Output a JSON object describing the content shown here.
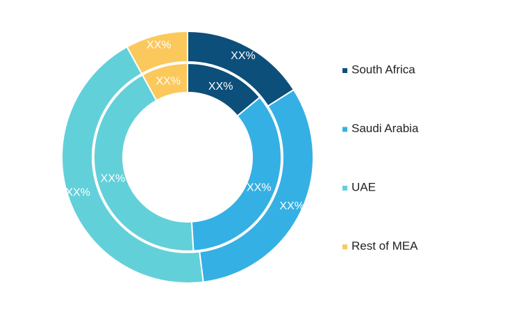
{
  "chart_data": {
    "type": "pie",
    "subtype": "double-donut",
    "categories": [
      "South Africa",
      "Saudi Arabia",
      "UAE",
      "Rest of MEA"
    ],
    "colors": [
      "#0c4f7a",
      "#35b0e4",
      "#62d0d9",
      "#fbc85c"
    ],
    "series": [
      {
        "ring": "outer",
        "values": [
          16,
          32,
          44,
          8
        ],
        "labels": [
          "XX%",
          "XX%",
          "XX%",
          "XX%"
        ]
      },
      {
        "ring": "inner",
        "values": [
          14,
          35,
          43,
          8
        ],
        "labels": [
          "XX%",
          "XX%",
          "XX%",
          "XX%"
        ]
      }
    ],
    "legend": {
      "placement": "right",
      "entries": [
        "South Africa",
        "Saudi Arabia",
        "UAE",
        "Rest of MEA"
      ]
    }
  }
}
